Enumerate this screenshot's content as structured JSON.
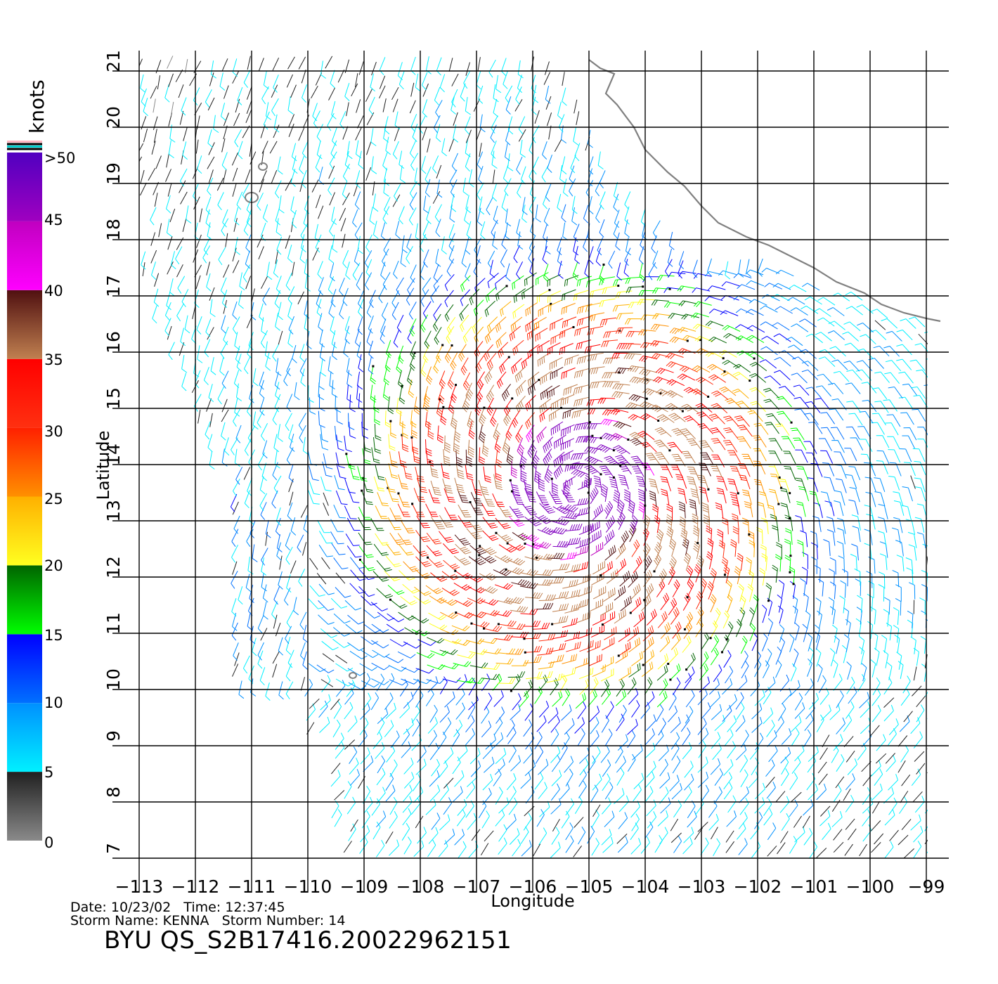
{
  "map": {
    "x_axis_label": "Longitude",
    "y_axis_label": "Latitude",
    "lon_min": -113,
    "lon_max": -98.6,
    "lat_min": 7,
    "lat_max": 21.25,
    "lon_ticks": [
      "-113",
      "-112",
      "-111",
      "-110",
      "-109",
      "-108",
      "-107",
      "-106",
      "-105",
      "-104",
      "-103",
      "-102",
      "-101",
      "-100",
      "-99"
    ],
    "lat_ticks": [
      "7",
      "8",
      "9",
      "10",
      "11",
      "12",
      "13",
      "14",
      "15",
      "16",
      "17",
      "18",
      "19",
      "20",
      "21"
    ],
    "grid": true,
    "storm_center": {
      "lon": -105.2,
      "lat": 13.6
    },
    "coastline_color": "#808080",
    "frame_color": "#000000"
  },
  "legend": {
    "unit_label": "knots",
    "tick_labels": [
      ">50",
      "45",
      "40",
      "35",
      "30",
      "25",
      "20",
      "15",
      "10",
      "5",
      "0"
    ],
    "bands": [
      {
        "from": 0,
        "to": 5,
        "color_top": "#202020",
        "color_bottom": "#8a8a8a"
      },
      {
        "from": 5,
        "to": 10,
        "color_top": "#0090ff",
        "color_bottom": "#00f0ff"
      },
      {
        "from": 10,
        "to": 15,
        "color_top": "#0000ff",
        "color_bottom": "#0070ff"
      },
      {
        "from": 15,
        "to": 20,
        "color_top": "#006400",
        "color_bottom": "#00ff00"
      },
      {
        "from": 20,
        "to": 25,
        "color_top": "#ffb000",
        "color_bottom": "#ffff20"
      },
      {
        "from": 25,
        "to": 30,
        "color_top": "#ff2000",
        "color_bottom": "#ff9000"
      },
      {
        "from": 30,
        "to": 35,
        "color_top": "#ff0000",
        "color_bottom": "#ff3010"
      },
      {
        "from": 35,
        "to": 40,
        "color_top": "#501010",
        "color_bottom": "#c08050"
      },
      {
        "from": 40,
        "to": 45,
        "color_top": "#c000c0",
        "color_bottom": "#ff00ff"
      },
      {
        "from": 45,
        "to": 50,
        "color_top": "#5000c0",
        "color_bottom": "#a000c0"
      }
    ]
  },
  "footer": {
    "line1": "Date: 10/23/02   Time: 12:37:45",
    "line2": "Storm Name: KENNA   Storm Number: 14",
    "title": "BYU QS_S2B17416.20022962151"
  }
}
